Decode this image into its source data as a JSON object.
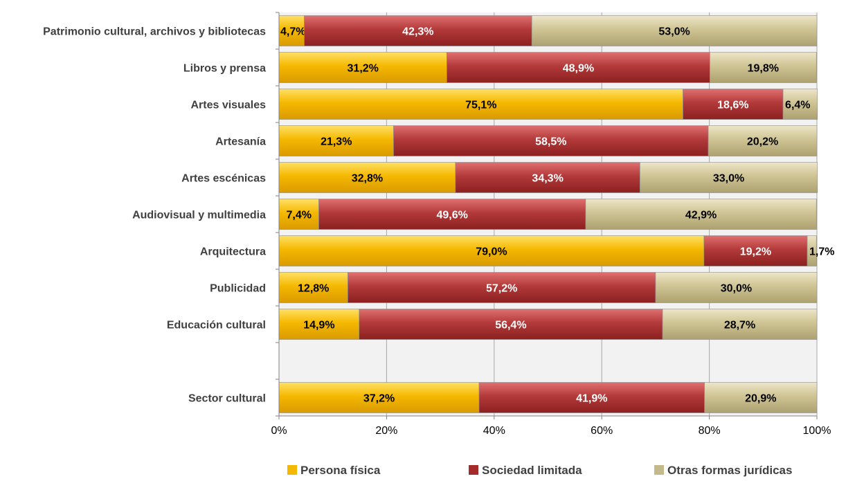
{
  "chart_data": {
    "type": "bar",
    "orientation": "horizontal",
    "stacked": "percent",
    "title": "",
    "xlabel": "",
    "ylabel": "",
    "xlim": [
      0,
      100
    ],
    "x_ticks": [
      "0%",
      "20%",
      "40%",
      "60%",
      "80%",
      "100%"
    ],
    "x_tick_values": [
      0,
      20,
      40,
      60,
      80,
      100
    ],
    "grid": "vertical",
    "legend_position": "bottom",
    "categories": [
      "Patrimonio cultural, archivos y bibliotecas",
      "Libros y prensa",
      "Artes visuales",
      "Artesanía",
      "Artes escénicas",
      "Audiovisual y multimedia",
      "Arquitectura",
      "Publicidad",
      "Educación cultural",
      "",
      "Sector cultural"
    ],
    "series": [
      {
        "name": "Persona física",
        "color": "#F5B800",
        "label_color": "#000000",
        "values": [
          4.7,
          31.2,
          75.1,
          21.3,
          32.8,
          7.4,
          79.0,
          12.8,
          14.9,
          null,
          37.2
        ],
        "labels": [
          "4,7%",
          "31,2%",
          "75,1%",
          "21,3%",
          "32,8%",
          "7,4%",
          "79,0%",
          "12,8%",
          "14,9%",
          "",
          "37,2%"
        ]
      },
      {
        "name": "Sociedad limitada",
        "color": "#A52A2A",
        "label_color": "#ffffff",
        "values": [
          42.3,
          48.9,
          18.6,
          58.5,
          34.3,
          49.6,
          19.2,
          57.2,
          56.4,
          null,
          41.9
        ],
        "labels": [
          "42,3%",
          "48,9%",
          "18,6%",
          "58,5%",
          "34,3%",
          "49,6%",
          "19,2%",
          "57,2%",
          "56,4%",
          "",
          "41,9%"
        ]
      },
      {
        "name": "Otras formas jurídicas",
        "color": "#C4B98A",
        "label_color": "#000000",
        "values": [
          53.0,
          19.8,
          6.4,
          20.2,
          33.0,
          42.9,
          1.7,
          30.0,
          28.7,
          null,
          20.9
        ],
        "labels": [
          "53,0%",
          "19,8%",
          "6,4%",
          "20,2%",
          "33,0%",
          "42,9%",
          "1,7%",
          "30,0%",
          "28,7%",
          "",
          "20,9%"
        ]
      }
    ]
  }
}
